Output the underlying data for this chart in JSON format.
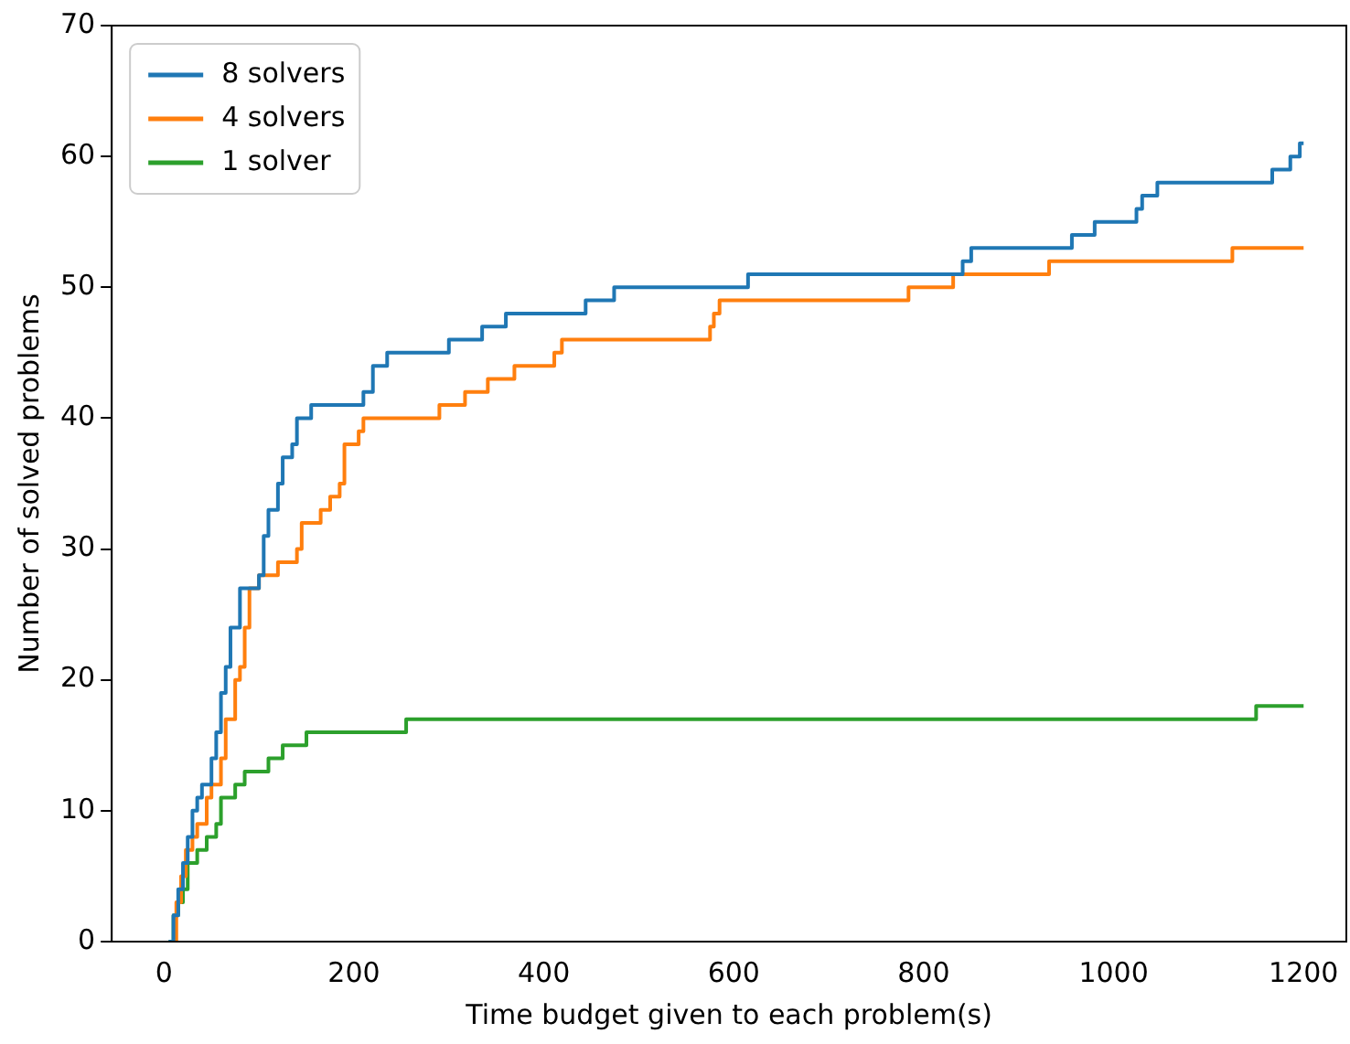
{
  "chart_data": {
    "type": "step",
    "xlabel": "Time budget given to each problem(s)",
    "ylabel": "Number of solved problems",
    "xlim": [
      -55,
      1245
    ],
    "xticks": [
      0,
      200,
      400,
      600,
      800,
      1000,
      1200
    ],
    "ylim": [
      0,
      70
    ],
    "yticks": [
      0,
      10,
      20,
      30,
      40,
      50,
      60,
      70
    ],
    "grid": false,
    "legend": "top left",
    "series": [
      {
        "name": "8 solvers",
        "color": "#1f77b4",
        "x": [
          5,
          10,
          15,
          20,
          25,
          30,
          35,
          40,
          50,
          55,
          60,
          65,
          70,
          80,
          100,
          105,
          110,
          120,
          125,
          135,
          140,
          155,
          210,
          220,
          235,
          300,
          335,
          360,
          444,
          474,
          615,
          841,
          850,
          956,
          980,
          1024,
          1030,
          1046,
          1167,
          1186,
          1196,
          1200
        ],
        "values": [
          0,
          2,
          4,
          6,
          8,
          10,
          11,
          12,
          14,
          16,
          19,
          21,
          24,
          27,
          28,
          31,
          33,
          35,
          37,
          38,
          40,
          41,
          42,
          44,
          45,
          46,
          47,
          48,
          49,
          50,
          51,
          52,
          53,
          54,
          55,
          56,
          57,
          58,
          59,
          60,
          61,
          61
        ]
      },
      {
        "name": "4 solvers",
        "color": "#ff7f0e",
        "x": [
          8,
          13,
          18,
          23,
          30,
          35,
          45,
          50,
          60,
          65,
          75,
          80,
          85,
          90,
          100,
          120,
          140,
          145,
          165,
          175,
          185,
          190,
          205,
          210,
          290,
          317,
          341,
          369,
          411,
          419,
          575,
          579,
          585,
          784,
          831,
          932,
          1125,
          1200
        ],
        "values": [
          0,
          3,
          5,
          7,
          8,
          9,
          11,
          12,
          14,
          17,
          20,
          21,
          24,
          27,
          28,
          29,
          30,
          32,
          33,
          34,
          35,
          38,
          39,
          40,
          41,
          42,
          43,
          44,
          45,
          46,
          47,
          48,
          49,
          50,
          51,
          52,
          53,
          53
        ]
      },
      {
        "name": "1 solver",
        "color": "#2ca02c",
        "x": [
          5,
          10,
          15,
          20,
          25,
          35,
          45,
          55,
          60,
          75,
          85,
          110,
          125,
          150,
          255,
          1150,
          1200
        ],
        "values": [
          0,
          2,
          3,
          4,
          6,
          7,
          8,
          9,
          11,
          12,
          13,
          14,
          15,
          16,
          17,
          18,
          18
        ]
      }
    ]
  }
}
